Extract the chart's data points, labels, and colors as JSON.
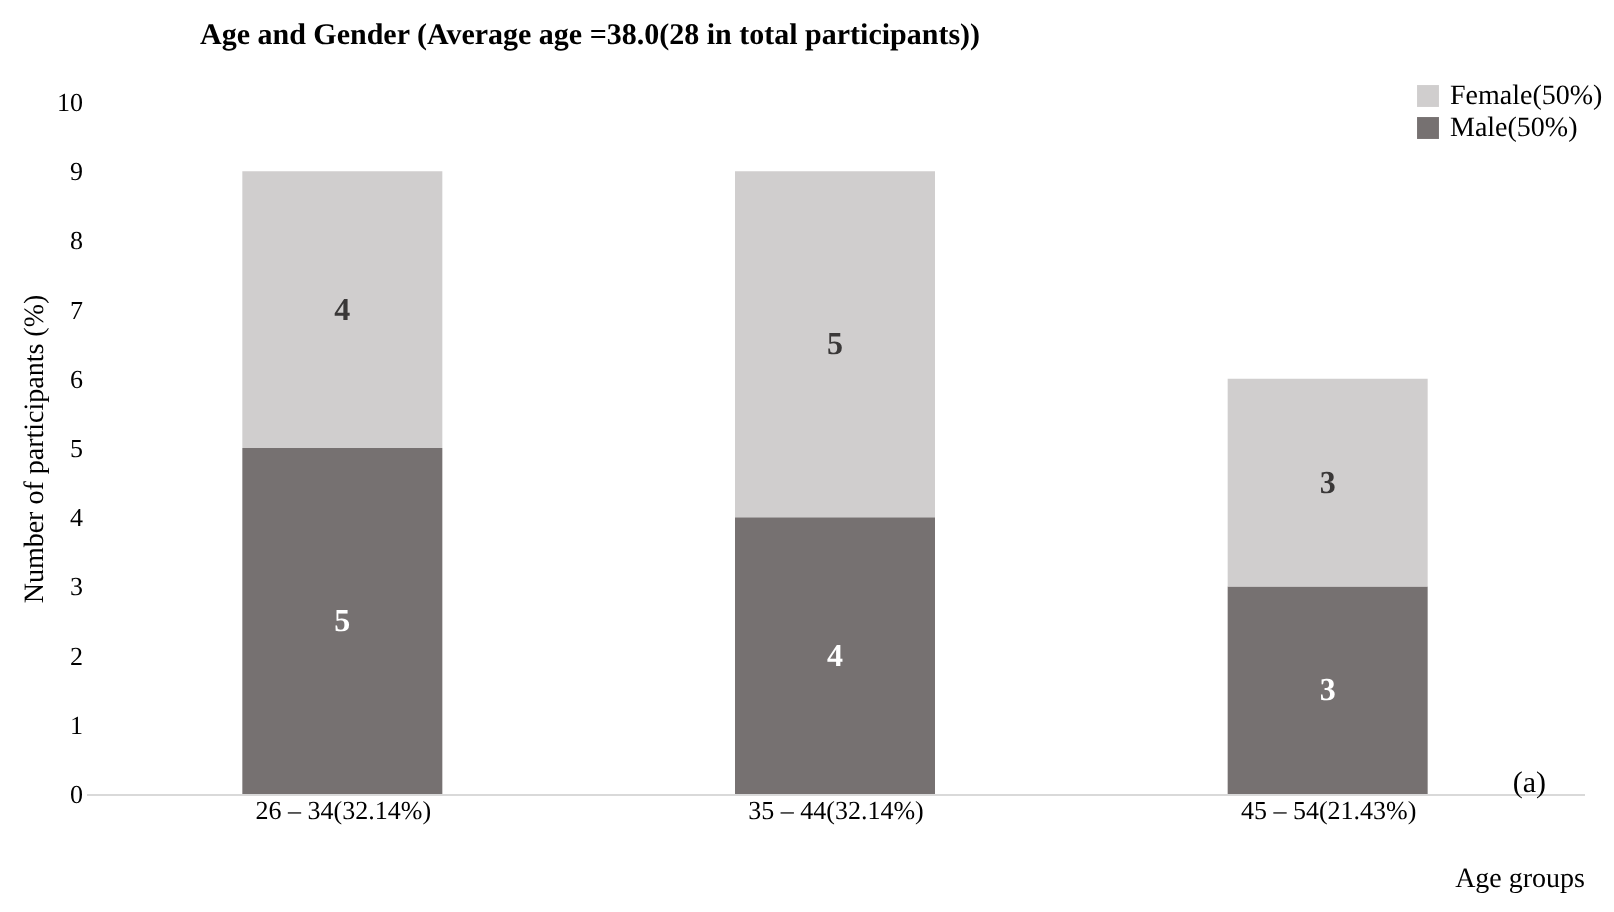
{
  "chart_data": {
    "type": "bar",
    "title": "Age and Gender (Average age =38.0(28 in total participants))",
    "xlabel": "Age groups",
    "ylabel": "Number of participants (%)",
    "categories": [
      "26 – 34(32.14%)",
      "35 – 44(32.14%)",
      "45 – 54(21.43%)"
    ],
    "series": [
      {
        "name": "Male(50%)",
        "color": "#767171",
        "values": [
          5,
          4,
          3
        ]
      },
      {
        "name": "Female(50%)",
        "color": "#d0cece",
        "values": [
          4,
          5,
          3
        ]
      }
    ],
    "stacked": true,
    "data_labels": true,
    "ylim": [
      0,
      10
    ],
    "yticks": [
      0,
      1,
      2,
      3,
      4,
      5,
      6,
      7,
      8,
      9,
      10
    ],
    "grid": false,
    "legend": "top right",
    "annotations": [
      "(a)"
    ]
  }
}
